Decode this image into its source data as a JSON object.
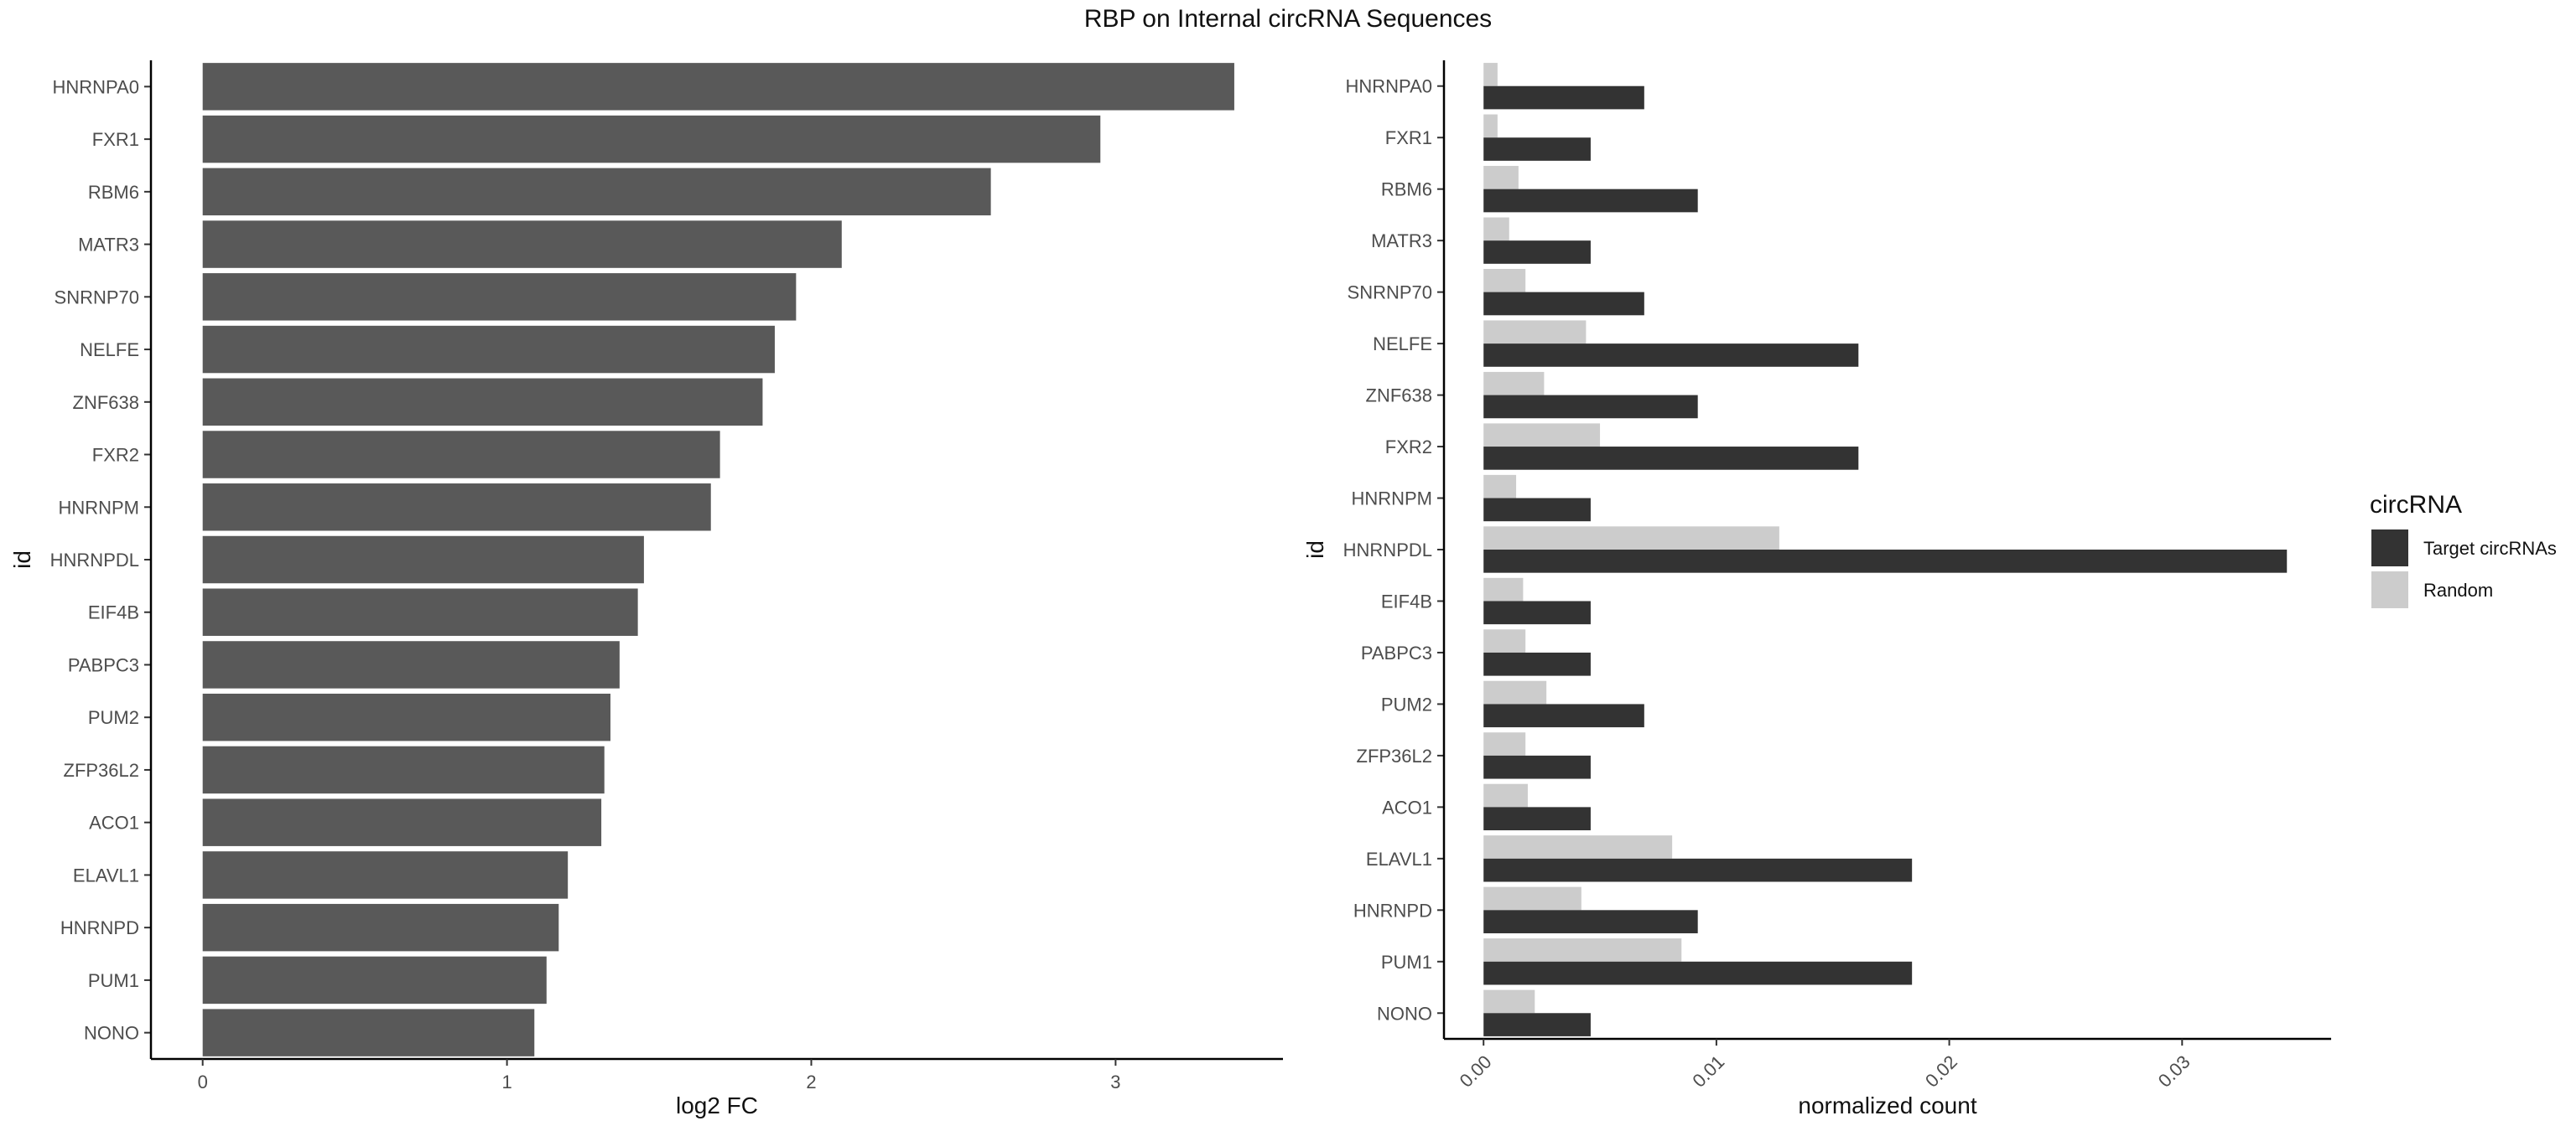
{
  "title": "RBP on Internal circRNA Sequences",
  "chart_data": [
    {
      "type": "bar",
      "orientation": "horizontal",
      "xlabel": "log2 FC",
      "ylabel": "id",
      "xlim": [
        -0.17,
        3.55
      ],
      "xticks": [
        "0",
        "1",
        "2",
        "3"
      ],
      "grid": false,
      "categories": [
        "HNRNPA0",
        "FXR1",
        "RBM6",
        "MATR3",
        "SNRNP70",
        "NELFE",
        "ZNF638",
        "FXR2",
        "HNRNPM",
        "HNRNPDL",
        "EIF4B",
        "PABPC3",
        "PUM2",
        "ZFP36L2",
        "ACO1",
        "ELAVL1",
        "HNRNPD",
        "PUM1",
        "NONO"
      ],
      "values": [
        3.39,
        2.95,
        2.59,
        2.1,
        1.95,
        1.88,
        1.84,
        1.7,
        1.67,
        1.45,
        1.43,
        1.37,
        1.34,
        1.32,
        1.31,
        1.2,
        1.17,
        1.13,
        1.09
      ],
      "bar_color": "#595959"
    },
    {
      "type": "bar",
      "orientation": "horizontal",
      "xlabel": "normalized count",
      "ylabel": "id",
      "xlim": [
        -0.0017,
        0.0364
      ],
      "xticks": [
        "0.00",
        "0.01",
        "0.02",
        "0.03"
      ],
      "grid": false,
      "categories": [
        "HNRNPA0",
        "FXR1",
        "RBM6",
        "MATR3",
        "SNRNP70",
        "NELFE",
        "ZNF638",
        "FXR2",
        "HNRNPM",
        "HNRNPDL",
        "EIF4B",
        "PABPC3",
        "PUM2",
        "ZFP36L2",
        "ACO1",
        "ELAVL1",
        "HNRNPD",
        "PUM1",
        "NONO"
      ],
      "series": [
        {
          "name": "Target circRNAs",
          "color": "#333333",
          "values": [
            0.0069,
            0.0046,
            0.0092,
            0.0046,
            0.0069,
            0.0161,
            0.0092,
            0.0161,
            0.0046,
            0.0345,
            0.0046,
            0.0046,
            0.0069,
            0.0046,
            0.0046,
            0.0184,
            0.0092,
            0.0184,
            0.0046
          ]
        },
        {
          "name": "Random",
          "color": "#cccccc",
          "values": [
            0.0006,
            0.0006,
            0.0015,
            0.0011,
            0.0018,
            0.0044,
            0.0026,
            0.005,
            0.0014,
            0.0127,
            0.0017,
            0.0018,
            0.0027,
            0.0018,
            0.0019,
            0.0081,
            0.0042,
            0.0085,
            0.0022
          ]
        }
      ],
      "legend": {
        "title": "circRNA",
        "position": "right"
      }
    }
  ]
}
